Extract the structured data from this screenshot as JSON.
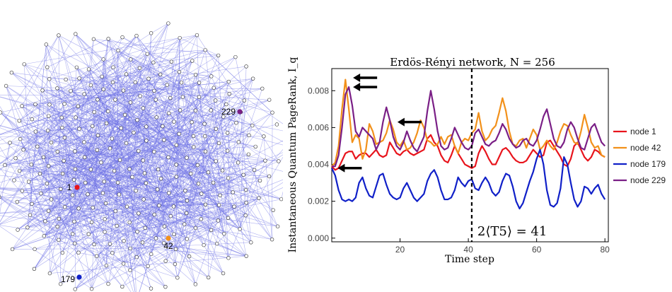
{
  "network": {
    "node_labels": [
      {
        "id": "1",
        "label": "1",
        "color": "#e8141c"
      },
      {
        "id": "42",
        "label": "42",
        "color": "#f2911b"
      },
      {
        "id": "179",
        "label": "179",
        "color": "#1020c8"
      },
      {
        "id": "229",
        "label": "229",
        "color": "#7a1f86"
      }
    ],
    "edge_color": "#6f72e6",
    "node_count": 256
  },
  "chart_data": {
    "type": "line",
    "title": "Erdös-Rényi network, N = 256",
    "xlabel": "Time step",
    "ylabel": "Instantaneous Quantum PageRank, I_q",
    "xlim": [
      0,
      81
    ],
    "ylim": [
      -0.0002,
      0.0092
    ],
    "x_ticks": [
      20,
      40,
      60,
      80
    ],
    "y_ticks": [
      "0.000",
      "0.002",
      "0.004",
      "0.006",
      "0.008"
    ],
    "vline": {
      "x": 41,
      "label": "2⟨T5⟩ = 41"
    },
    "arrows": [
      {
        "x": 5,
        "y": 0.0087
      },
      {
        "x": 5,
        "y": 0.0082
      },
      {
        "x": 18,
        "y": 0.0063
      },
      {
        "x": 0.5,
        "y": 0.0038
      }
    ],
    "series": [
      {
        "name": "node 1",
        "color": "#e8141c",
        "values": [
          0.0039,
          0.0037,
          0.0038,
          0.0042,
          0.0046,
          0.0047,
          0.0047,
          0.0043,
          0.0045,
          0.0046,
          0.0046,
          0.0044,
          0.0046,
          0.0048,
          0.0045,
          0.0044,
          0.0045,
          0.0052,
          0.0049,
          0.0046,
          0.0045,
          0.0047,
          0.0048,
          0.0046,
          0.0045,
          0.0046,
          0.0047,
          0.0048,
          0.0054,
          0.0056,
          0.0052,
          0.005,
          0.0045,
          0.0042,
          0.0041,
          0.0045,
          0.005,
          0.0046,
          0.0043,
          0.004,
          0.0039,
          0.0038,
          0.0039,
          0.0046,
          0.005,
          0.0047,
          0.0043,
          0.004,
          0.004,
          0.0044,
          0.0048,
          0.0049,
          0.0047,
          0.0044,
          0.0042,
          0.0041,
          0.0041,
          0.0042,
          0.0045,
          0.0048,
          0.0046,
          0.0044,
          0.0045,
          0.0052,
          0.0053,
          0.005,
          0.0047,
          0.0044,
          0.004,
          0.0039,
          0.0043,
          0.005,
          0.0052,
          0.0048,
          0.0044,
          0.0042,
          0.0044,
          0.0048,
          0.0047,
          0.0045,
          0.0044
        ]
      },
      {
        "name": "node 42",
        "color": "#f2911b",
        "values": [
          0.0039,
          0.0041,
          0.005,
          0.007,
          0.0086,
          0.007,
          0.0052,
          0.0056,
          0.0054,
          0.0043,
          0.0048,
          0.0062,
          0.0058,
          0.0051,
          0.0052,
          0.0053,
          0.0057,
          0.0064,
          0.0059,
          0.0052,
          0.005,
          0.0053,
          0.0048,
          0.0049,
          0.0052,
          0.0057,
          0.0064,
          0.006,
          0.0053,
          0.0052,
          0.005,
          0.0051,
          0.0055,
          0.0051,
          0.0055,
          0.0056,
          0.005,
          0.0046,
          0.0052,
          0.0054,
          0.0053,
          0.0057,
          0.0059,
          0.0068,
          0.0058,
          0.0053,
          0.0055,
          0.0059,
          0.0061,
          0.0068,
          0.0076,
          0.0069,
          0.0058,
          0.0051,
          0.005,
          0.0053,
          0.0054,
          0.0049,
          0.0054,
          0.0059,
          0.0056,
          0.0048,
          0.005,
          0.0053,
          0.005,
          0.0048,
          0.0052,
          0.0058,
          0.0062,
          0.0061,
          0.0056,
          0.0052,
          0.0051,
          0.0058,
          0.0067,
          0.006,
          0.0052,
          0.0049,
          0.005,
          0.0045,
          0.0044
        ]
      },
      {
        "name": "node 179",
        "color": "#1020c8",
        "values": [
          0.0038,
          0.0034,
          0.0026,
          0.0021,
          0.002,
          0.0021,
          0.002,
          0.0022,
          0.003,
          0.0033,
          0.0027,
          0.0023,
          0.0022,
          0.0028,
          0.0034,
          0.0035,
          0.0029,
          0.0024,
          0.0022,
          0.0021,
          0.0022,
          0.0027,
          0.003,
          0.0026,
          0.0022,
          0.002,
          0.0022,
          0.0024,
          0.0031,
          0.0035,
          0.0037,
          0.0033,
          0.0026,
          0.0021,
          0.0021,
          0.0022,
          0.0026,
          0.0033,
          0.003,
          0.0028,
          0.0031,
          0.0032,
          0.0027,
          0.0026,
          0.003,
          0.0033,
          0.003,
          0.0025,
          0.0023,
          0.0025,
          0.0031,
          0.0035,
          0.0034,
          0.0028,
          0.002,
          0.0016,
          0.0019,
          0.0025,
          0.0031,
          0.0036,
          0.0043,
          0.0048,
          0.004,
          0.0026,
          0.0018,
          0.0017,
          0.0019,
          0.0027,
          0.0044,
          0.004,
          0.003,
          0.0021,
          0.0017,
          0.002,
          0.0028,
          0.0027,
          0.0024,
          0.0027,
          0.0029,
          0.0024,
          0.0021
        ]
      },
      {
        "name": "node 229",
        "color": "#7a1f86",
        "values": [
          0.0039,
          0.0039,
          0.0045,
          0.006,
          0.0078,
          0.0082,
          0.0072,
          0.0058,
          0.0055,
          0.006,
          0.0058,
          0.0056,
          0.0054,
          0.0048,
          0.0052,
          0.0063,
          0.0071,
          0.0064,
          0.0055,
          0.005,
          0.0048,
          0.0052,
          0.0058,
          0.0053,
          0.0049,
          0.0047,
          0.0051,
          0.0055,
          0.0069,
          0.008,
          0.007,
          0.0058,
          0.005,
          0.0048,
          0.0049,
          0.0054,
          0.006,
          0.0056,
          0.0052,
          0.0049,
          0.0048,
          0.005,
          0.0057,
          0.0059,
          0.0055,
          0.0051,
          0.005,
          0.0052,
          0.0053,
          0.0057,
          0.0062,
          0.0059,
          0.0054,
          0.0051,
          0.0049,
          0.005,
          0.0053,
          0.0054,
          0.0051,
          0.005,
          0.0053,
          0.0059,
          0.0066,
          0.007,
          0.0062,
          0.0054,
          0.005,
          0.0049,
          0.0052,
          0.0059,
          0.0063,
          0.006,
          0.0054,
          0.0049,
          0.0048,
          0.0054,
          0.006,
          0.0062,
          0.0057,
          0.0052,
          0.005
        ]
      }
    ]
  }
}
